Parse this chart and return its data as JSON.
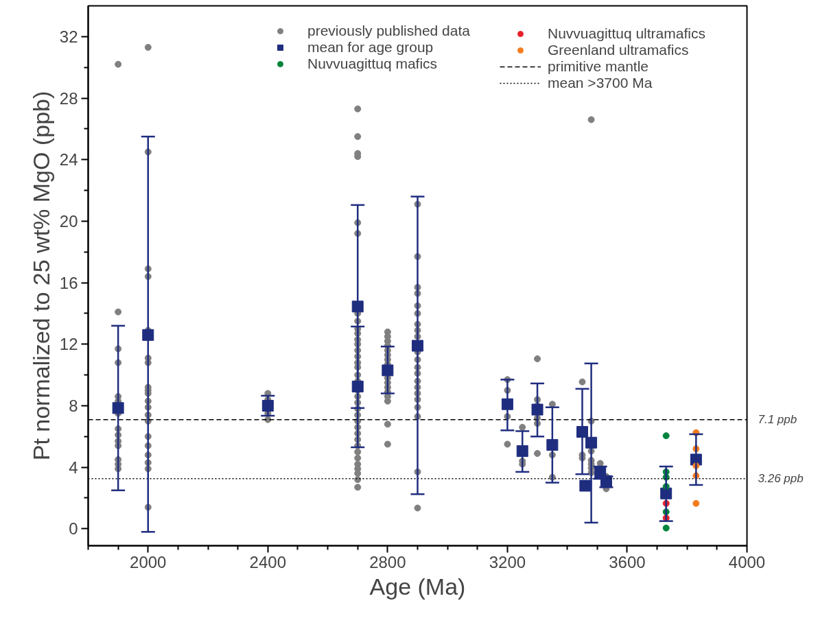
{
  "chart_data": {
    "type": "scatter",
    "xlabel": "Age (Ma)",
    "ylabel": "Pt normalized to 25 wt% MgO (ppb)",
    "xlim": [
      1800,
      4000
    ],
    "ylim": [
      -1.1,
      34
    ],
    "xticks": [
      2000,
      2400,
      2800,
      3200,
      3600,
      4000,
      {
        "value": 1800,
        "label": null
      },
      {
        "value": 1900,
        "label": null
      },
      {
        "value": 2100,
        "label": null
      },
      {
        "value": 2200,
        "label": null
      },
      {
        "value": 2300,
        "label": null
      },
      {
        "value": 2500,
        "label": null
      },
      {
        "value": 2600,
        "label": null
      },
      {
        "value": 2700,
        "label": null
      },
      {
        "value": 2900,
        "label": null
      },
      {
        "value": 3000,
        "label": null
      },
      {
        "value": 3100,
        "label": null
      },
      {
        "value": 3300,
        "label": null
      },
      {
        "value": 3400,
        "label": null
      },
      {
        "value": 3500,
        "label": null
      },
      {
        "value": 3700,
        "label": null
      },
      {
        "value": 3800,
        "label": null
      },
      {
        "value": 3900,
        "label": null
      }
    ],
    "yticks": [
      0,
      4,
      8,
      12,
      16,
      20,
      24,
      28,
      32,
      {
        "value": 2,
        "label": null
      },
      {
        "value": 6,
        "label": null
      },
      {
        "value": 10,
        "label": null
      },
      {
        "value": 14,
        "label": null
      },
      {
        "value": 18,
        "label": null
      },
      {
        "value": 22,
        "label": null
      },
      {
        "value": 26,
        "label": null
      },
      {
        "value": 30,
        "label": null
      }
    ],
    "grid": false,
    "legend": "top right",
    "series": [
      {
        "name": "previously published data",
        "color": "#808080",
        "marker": "circle",
        "x": [
          1900,
          1900,
          1900,
          1900,
          1900,
          1900,
          1900,
          1900,
          1900,
          1900,
          1900,
          1900,
          1900,
          1900,
          2000,
          2000,
          2000,
          2000,
          2000,
          2000,
          2000,
          2000,
          2000,
          2000,
          2000,
          2000,
          2000,
          2000,
          2000,
          2000,
          2000,
          2000,
          2000,
          2000,
          2400,
          2400,
          2400,
          2400,
          2700,
          2700,
          2700,
          2700,
          2700,
          2700,
          2700,
          2700,
          2700,
          2700,
          2700,
          2700,
          2700,
          2700,
          2700,
          2700,
          2700,
          2700,
          2700,
          2700,
          2700,
          2700,
          2700,
          2700,
          2700,
          2700,
          2700,
          2700,
          2700,
          2700,
          2700,
          2700,
          2700,
          2700,
          2700,
          2800,
          2800,
          2800,
          2800,
          2800,
          2800,
          2800,
          2800,
          2800,
          2800,
          2800,
          2800,
          2800,
          2800,
          2800,
          2800,
          2900,
          2900,
          2900,
          2900,
          2900,
          2900,
          2900,
          2900,
          2900,
          2900,
          2900,
          2900,
          2900,
          2900,
          2900,
          2900,
          2900,
          2900,
          2900,
          2900,
          2900,
          3200,
          3200,
          3200,
          3200,
          3250,
          3250,
          3250,
          3300,
          3300,
          3300,
          3300,
          3300,
          3300,
          3350,
          3350,
          3350,
          3450,
          3450,
          3450,
          3480,
          3480,
          3480,
          3480,
          3480,
          3480,
          3480,
          3510,
          3530,
          3530
        ],
        "values": [
          30.2,
          14.1,
          11.7,
          10.8,
          8.6,
          8.3,
          7.5,
          6.5,
          6.1,
          5.7,
          5.4,
          4.5,
          4.2,
          3.9,
          31.3,
          24.5,
          16.9,
          16.4,
          12.9,
          11.1,
          10.8,
          9.2,
          9.0,
          8.8,
          8.3,
          7.9,
          7.4,
          7.0,
          6.0,
          5.4,
          4.8,
          4.3,
          3.9,
          1.4,
          8.8,
          8.4,
          7.5,
          7.1,
          27.3,
          25.5,
          24.4,
          24.2,
          19.9,
          19.2,
          14.0,
          13.5,
          13.0,
          12.7,
          12.3,
          12.0,
          11.6,
          11.2,
          10.8,
          10.5,
          10.0,
          9.6,
          9.0,
          8.6,
          8.2,
          7.8,
          7.4,
          7.0,
          6.6,
          6.2,
          5.8,
          5.4,
          5.0,
          4.6,
          4.2,
          3.9,
          3.6,
          3.2,
          2.7,
          12.8,
          12.5,
          12.2,
          11.9,
          11.6,
          11.3,
          11.0,
          10.7,
          9.8,
          9.5,
          9.2,
          8.9,
          8.6,
          8.3,
          6.8,
          5.5,
          21.1,
          17.7,
          15.7,
          15.3,
          14.5,
          14.0,
          13.3,
          12.9,
          12.5,
          11.5,
          11.0,
          10.5,
          10.1,
          9.6,
          9.2,
          8.8,
          8.4,
          7.9,
          7.3,
          3.7,
          1.35,
          9.7,
          9.0,
          7.3,
          5.5,
          6.6,
          4.4,
          4.2,
          11.05,
          8.4,
          8.0,
          7.2,
          6.85,
          4.9,
          8.1,
          4.8,
          3.35,
          9.55,
          4.8,
          4.6,
          26.6,
          7.0,
          5.05,
          4.45,
          4.2,
          3.95,
          3.65,
          4.25,
          3.4,
          2.6
        ]
      },
      {
        "name": "mean for age group",
        "color": "#1f2d7f",
        "marker": "square",
        "x": [
          1900,
          2000,
          2400,
          2700,
          2700,
          2800,
          2900,
          3200,
          3250,
          3300,
          3350,
          3450,
          3460,
          3480,
          3510,
          3530,
          3730,
          3830
        ],
        "values": [
          7.85,
          12.6,
          8.0,
          14.45,
          9.25,
          10.3,
          11.9,
          8.1,
          5.05,
          7.75,
          5.45,
          6.3,
          2.8,
          5.6,
          3.65,
          3.1,
          2.3,
          4.5
        ],
        "errors": [
          [
            2.5,
            13.2
          ],
          [
            -0.2,
            25.5
          ],
          [
            7.35,
            8.65
          ],
          [
            7.85,
            21.05
          ],
          [
            5.3,
            13.15
          ],
          [
            8.8,
            11.85
          ],
          [
            2.25,
            21.6
          ],
          [
            6.4,
            9.7
          ],
          [
            3.7,
            6.35
          ],
          [
            6.0,
            9.45
          ],
          [
            3.0,
            7.9
          ],
          [
            3.55,
            9.1
          ],
          null,
          [
            0.4,
            10.75
          ],
          [
            3.25,
            4.05
          ],
          [
            2.7,
            3.4
          ],
          [
            0.5,
            4.05
          ],
          [
            2.85,
            6.15
          ]
        ]
      },
      {
        "name": "Nuvvuagittuq mafics",
        "color": "#00843d",
        "marker": "circle",
        "x": [
          3730,
          3730,
          3730,
          3730,
          3730,
          3730
        ],
        "values": [
          6.05,
          3.7,
          3.35,
          2.75,
          1.1,
          0.05
        ]
      },
      {
        "name": "Nuvvuagittuq ultramafics",
        "color": "#e8202a",
        "marker": "circle",
        "x": [
          3730,
          3730
        ],
        "values": [
          1.65,
          0.7
        ]
      },
      {
        "name": "Greenland ultramafics",
        "color": "#f47d20",
        "marker": "circle",
        "x": [
          3830,
          3830,
          3830,
          3830,
          3830
        ],
        "values": [
          6.25,
          5.2,
          4.1,
          3.45,
          1.65
        ]
      }
    ],
    "ref_lines": [
      {
        "axis": "y",
        "value": 7.1,
        "label": "primitive mantle",
        "color": "#000000",
        "line_style": "dashed"
      },
      {
        "axis": "y",
        "value": 3.26,
        "label": "mean >3700 Ma",
        "color": "#000000",
        "line_style": "dotted"
      }
    ],
    "annotations": [
      "7.1 ppb",
      "3.26 ppb"
    ]
  }
}
